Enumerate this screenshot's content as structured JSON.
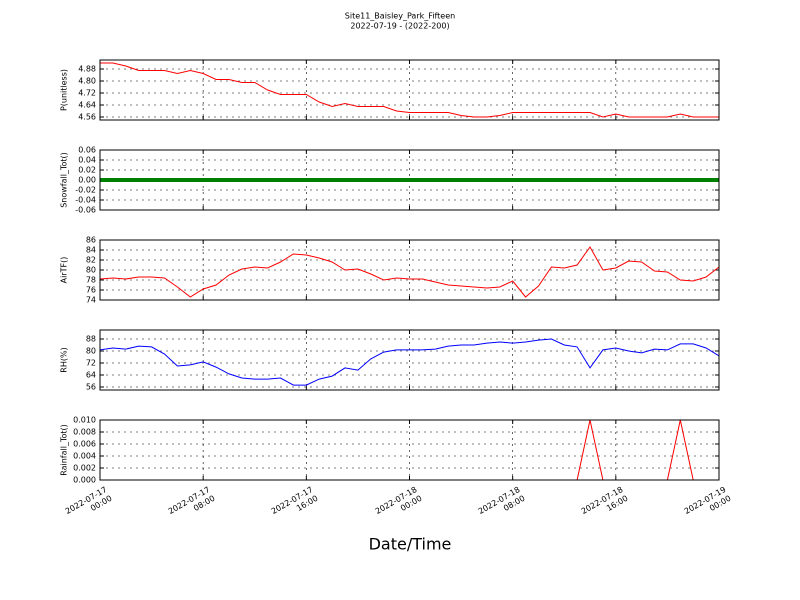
{
  "chart_data": [
    {
      "type": "line",
      "title": "Site11_Baisley_Park_Fifteen",
      "subtitle": "2022-07-19 - (2022-200)",
      "ylabel": "P(unitless)",
      "color": "#ff0000",
      "x": [
        "2022-07-17 00:00",
        "2022-07-17 01:00",
        "2022-07-17 02:00",
        "2022-07-17 03:00",
        "2022-07-17 04:00",
        "2022-07-17 05:00",
        "2022-07-17 06:00",
        "2022-07-17 07:00",
        "2022-07-17 08:00",
        "2022-07-17 09:00",
        "2022-07-17 10:00",
        "2022-07-17 11:00",
        "2022-07-17 12:00",
        "2022-07-17 13:00",
        "2022-07-17 14:00",
        "2022-07-17 15:00",
        "2022-07-17 16:00",
        "2022-07-17 17:00",
        "2022-07-17 18:00",
        "2022-07-17 19:00",
        "2022-07-17 20:00",
        "2022-07-17 21:00",
        "2022-07-17 22:00",
        "2022-07-17 23:00",
        "2022-07-18 00:00",
        "2022-07-18 01:00",
        "2022-07-18 02:00",
        "2022-07-18 03:00",
        "2022-07-18 04:00",
        "2022-07-18 05:00",
        "2022-07-18 06:00",
        "2022-07-18 07:00",
        "2022-07-18 08:00",
        "2022-07-18 09:00",
        "2022-07-18 10:00",
        "2022-07-18 11:00",
        "2022-07-18 12:00",
        "2022-07-18 13:00",
        "2022-07-18 14:00",
        "2022-07-18 15:00",
        "2022-07-18 16:00",
        "2022-07-18 17:00",
        "2022-07-18 18:00",
        "2022-07-18 19:00",
        "2022-07-18 20:00",
        "2022-07-18 21:00",
        "2022-07-18 22:00",
        "2022-07-18 23:00",
        "2022-07-19 00:00"
      ],
      "values": [
        4.92,
        4.92,
        4.9,
        4.87,
        4.87,
        4.87,
        4.85,
        4.87,
        4.85,
        4.81,
        4.81,
        4.79,
        4.79,
        4.74,
        4.71,
        4.71,
        4.71,
        4.66,
        4.63,
        4.65,
        4.63,
        4.63,
        4.63,
        4.6,
        4.59,
        4.59,
        4.59,
        4.59,
        4.57,
        4.56,
        4.56,
        4.57,
        4.59,
        4.59,
        4.59,
        4.59,
        4.59,
        4.59,
        4.59,
        4.56,
        4.58,
        4.56,
        4.56,
        4.56,
        4.56,
        4.58,
        4.56,
        4.56,
        4.56
      ],
      "ylim": [
        4.54,
        4.94
      ],
      "yticks": [
        4.56,
        4.64,
        4.72,
        {
          "value": 4.8,
          "label": "4.80"
        },
        4.88
      ],
      "grid": true
    },
    {
      "type": "line",
      "ylabel": "Snowfall_Tot()",
      "color": "#008000",
      "x": [
        "2022-07-17 00:00",
        "2022-07-17 01:00",
        "2022-07-17 02:00",
        "2022-07-17 03:00",
        "2022-07-17 04:00",
        "2022-07-17 05:00",
        "2022-07-17 06:00",
        "2022-07-17 07:00",
        "2022-07-17 08:00",
        "2022-07-17 09:00",
        "2022-07-17 10:00",
        "2022-07-17 11:00",
        "2022-07-17 12:00",
        "2022-07-17 13:00",
        "2022-07-17 14:00",
        "2022-07-17 15:00",
        "2022-07-17 16:00",
        "2022-07-17 17:00",
        "2022-07-17 18:00",
        "2022-07-17 19:00",
        "2022-07-17 20:00",
        "2022-07-17 21:00",
        "2022-07-17 22:00",
        "2022-07-17 23:00",
        "2022-07-18 00:00",
        "2022-07-18 01:00",
        "2022-07-18 02:00",
        "2022-07-18 03:00",
        "2022-07-18 04:00",
        "2022-07-18 05:00",
        "2022-07-18 06:00",
        "2022-07-18 07:00",
        "2022-07-18 08:00",
        "2022-07-18 09:00",
        "2022-07-18 10:00",
        "2022-07-18 11:00",
        "2022-07-18 12:00",
        "2022-07-18 13:00",
        "2022-07-18 14:00",
        "2022-07-18 15:00",
        "2022-07-18 16:00",
        "2022-07-18 17:00",
        "2022-07-18 18:00",
        "2022-07-18 19:00",
        "2022-07-18 20:00",
        "2022-07-18 21:00",
        "2022-07-18 22:00",
        "2022-07-18 23:00",
        "2022-07-19 00:00"
      ],
      "values": [
        0,
        0,
        0,
        0,
        0,
        0,
        0,
        0,
        0,
        0,
        0,
        0,
        0,
        0,
        0,
        0,
        0,
        0,
        0,
        0,
        0,
        0,
        0,
        0,
        0,
        0,
        0,
        0,
        0,
        0,
        0,
        0,
        0,
        0,
        0,
        0,
        0,
        0,
        0,
        0,
        0,
        0,
        0,
        0,
        0,
        0,
        0,
        0,
        0
      ],
      "ylim": [
        -0.06,
        0.06
      ],
      "yticks": [
        -0.06,
        -0.04,
        -0.02,
        {
          "value": 0,
          "label": "0.00"
        },
        0.02,
        0.04,
        0.06
      ],
      "grid": true,
      "markers": true
    },
    {
      "type": "line",
      "ylabel": "AirTF()",
      "color": "#ff0000",
      "x": [
        "2022-07-17 00:00",
        "2022-07-17 01:00",
        "2022-07-17 02:00",
        "2022-07-17 03:00",
        "2022-07-17 04:00",
        "2022-07-17 05:00",
        "2022-07-17 06:00",
        "2022-07-17 07:00",
        "2022-07-17 08:00",
        "2022-07-17 09:00",
        "2022-07-17 10:00",
        "2022-07-17 11:00",
        "2022-07-17 12:00",
        "2022-07-17 13:00",
        "2022-07-17 14:00",
        "2022-07-17 15:00",
        "2022-07-17 16:00",
        "2022-07-17 17:00",
        "2022-07-17 18:00",
        "2022-07-17 19:00",
        "2022-07-17 20:00",
        "2022-07-17 21:00",
        "2022-07-17 22:00",
        "2022-07-17 23:00",
        "2022-07-18 00:00",
        "2022-07-18 01:00",
        "2022-07-18 02:00",
        "2022-07-18 03:00",
        "2022-07-18 04:00",
        "2022-07-18 05:00",
        "2022-07-18 06:00",
        "2022-07-18 07:00",
        "2022-07-18 08:00",
        "2022-07-18 09:00",
        "2022-07-18 10:00",
        "2022-07-18 11:00",
        "2022-07-18 12:00",
        "2022-07-18 13:00",
        "2022-07-18 14:00",
        "2022-07-18 15:00",
        "2022-07-18 16:00",
        "2022-07-18 17:00",
        "2022-07-18 18:00",
        "2022-07-18 19:00",
        "2022-07-18 20:00",
        "2022-07-18 21:00",
        "2022-07-18 22:00",
        "2022-07-18 23:00",
        "2022-07-19 00:00"
      ],
      "values": [
        78.2,
        78.4,
        78.2,
        78.6,
        78.6,
        78.4,
        76.6,
        74.6,
        76.2,
        77.0,
        79.0,
        80.2,
        80.6,
        80.4,
        81.6,
        83.2,
        83.0,
        82.4,
        81.6,
        80.0,
        80.2,
        79.2,
        78.0,
        78.4,
        78.2,
        78.2,
        77.6,
        77.0,
        76.8,
        76.6,
        76.4,
        76.6,
        77.8,
        74.6,
        76.8,
        80.6,
        80.4,
        81.0,
        84.6,
        80.0,
        80.4,
        81.8,
        81.6,
        79.8,
        79.6,
        78.0,
        77.8,
        78.6,
        80.6
      ],
      "ylim": [
        74,
        86
      ],
      "yticks": [
        74,
        76,
        78,
        80,
        82,
        84,
        86
      ],
      "grid": true
    },
    {
      "type": "line",
      "ylabel": "RH(%)",
      "color": "#0000ff",
      "x": [
        "2022-07-17 00:00",
        "2022-07-17 01:00",
        "2022-07-17 02:00",
        "2022-07-17 03:00",
        "2022-07-17 04:00",
        "2022-07-17 05:00",
        "2022-07-17 06:00",
        "2022-07-17 07:00",
        "2022-07-17 08:00",
        "2022-07-17 09:00",
        "2022-07-17 10:00",
        "2022-07-17 11:00",
        "2022-07-17 12:00",
        "2022-07-17 13:00",
        "2022-07-17 14:00",
        "2022-07-17 15:00",
        "2022-07-17 16:00",
        "2022-07-17 17:00",
        "2022-07-17 18:00",
        "2022-07-17 19:00",
        "2022-07-17 20:00",
        "2022-07-17 21:00",
        "2022-07-17 22:00",
        "2022-07-17 23:00",
        "2022-07-18 00:00",
        "2022-07-18 01:00",
        "2022-07-18 02:00",
        "2022-07-18 03:00",
        "2022-07-18 04:00",
        "2022-07-18 05:00",
        "2022-07-18 06:00",
        "2022-07-18 07:00",
        "2022-07-18 08:00",
        "2022-07-18 09:00",
        "2022-07-18 10:00",
        "2022-07-18 11:00",
        "2022-07-18 12:00",
        "2022-07-18 13:00",
        "2022-07-18 14:00",
        "2022-07-18 15:00",
        "2022-07-18 16:00",
        "2022-07-18 17:00",
        "2022-07-18 18:00",
        "2022-07-18 19:00",
        "2022-07-18 20:00",
        "2022-07-18 21:00",
        "2022-07-18 22:00",
        "2022-07-18 23:00",
        "2022-07-19 00:00"
      ],
      "values": [
        80.7,
        82.0,
        81.3,
        83.3,
        82.7,
        78.0,
        70.0,
        70.7,
        72.7,
        69.3,
        64.7,
        62.0,
        61.3,
        61.3,
        62.0,
        57.3,
        57.3,
        61.3,
        63.3,
        68.7,
        67.3,
        74.7,
        79.3,
        80.7,
        80.7,
        80.7,
        81.3,
        83.3,
        84.0,
        84.0,
        85.3,
        86.0,
        85.3,
        86.0,
        87.3,
        88.0,
        84.0,
        82.7,
        68.7,
        80.7,
        82.0,
        80.0,
        78.7,
        81.3,
        80.7,
        84.7,
        84.7,
        82.0,
        76.7
      ],
      "ylim": [
        54,
        94
      ],
      "yticks": [
        56,
        64,
        72,
        80,
        88
      ],
      "grid": true
    },
    {
      "type": "line",
      "ylabel": "Rainfall_Tot()",
      "xlabel": "Date/Time",
      "color": "#ff0000",
      "x": [
        "2022-07-17 00:00",
        "2022-07-17 01:00",
        "2022-07-17 02:00",
        "2022-07-17 03:00",
        "2022-07-17 04:00",
        "2022-07-17 05:00",
        "2022-07-17 06:00",
        "2022-07-17 07:00",
        "2022-07-17 08:00",
        "2022-07-17 09:00",
        "2022-07-17 10:00",
        "2022-07-17 11:00",
        "2022-07-17 12:00",
        "2022-07-17 13:00",
        "2022-07-17 14:00",
        "2022-07-17 15:00",
        "2022-07-17 16:00",
        "2022-07-17 17:00",
        "2022-07-17 18:00",
        "2022-07-17 19:00",
        "2022-07-17 20:00",
        "2022-07-17 21:00",
        "2022-07-17 22:00",
        "2022-07-17 23:00",
        "2022-07-18 00:00",
        "2022-07-18 01:00",
        "2022-07-18 02:00",
        "2022-07-18 03:00",
        "2022-07-18 04:00",
        "2022-07-18 05:00",
        "2022-07-18 06:00",
        "2022-07-18 07:00",
        "2022-07-18 08:00",
        "2022-07-18 09:00",
        "2022-07-18 10:00",
        "2022-07-18 11:00",
        "2022-07-18 12:00",
        "2022-07-18 13:00",
        "2022-07-18 14:00",
        "2022-07-18 15:00",
        "2022-07-18 16:00",
        "2022-07-18 17:00",
        "2022-07-18 18:00",
        "2022-07-18 19:00",
        "2022-07-18 20:00",
        "2022-07-18 21:00",
        "2022-07-18 22:00",
        "2022-07-18 23:00",
        "2022-07-19 00:00"
      ],
      "values": [
        0,
        0,
        0,
        0,
        0,
        0,
        0,
        0,
        0,
        0,
        0,
        0,
        0,
        0,
        0,
        0,
        0,
        0,
        0,
        0,
        0,
        0,
        0,
        0,
        0,
        0,
        0,
        0,
        0,
        0,
        0,
        0,
        0,
        0,
        0,
        0,
        0,
        0,
        0.01,
        0,
        0,
        0,
        0,
        0,
        0,
        0.01,
        0,
        0,
        0
      ],
      "ylim": [
        0,
        0.01
      ],
      "yticks": [
        {
          "value": 0,
          "label": "0.000"
        },
        {
          "value": 0.002,
          "label": "0.002"
        },
        {
          "value": 0.004,
          "label": "0.004"
        },
        {
          "value": 0.006,
          "label": "0.006"
        },
        {
          "value": 0.008,
          "label": "0.008"
        },
        {
          "value": 0.01,
          "label": "0.010"
        }
      ],
      "xlim": [
        "2022-07-17 00:00",
        "2022-07-19 00:00"
      ],
      "xticks": [
        "2022-07-17 00:00",
        "2022-07-17 08:00",
        "2022-07-17 16:00",
        "2022-07-18 00:00",
        "2022-07-18 08:00",
        "2022-07-18 16:00",
        "2022-07-19 00:00"
      ],
      "grid": true
    }
  ]
}
